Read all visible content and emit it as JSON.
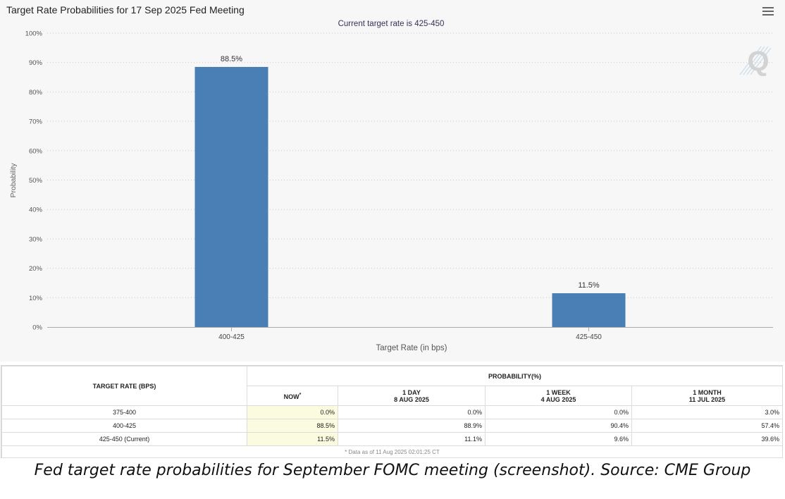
{
  "chart": {
    "title": "Target Rate Probabilities for 17 Sep 2025 Fed Meeting",
    "subtitle": "Current target rate is 425-450"
  },
  "chart_data": {
    "type": "bar",
    "title": "Target Rate Probabilities for 17 Sep 2025 Fed Meeting",
    "subtitle": "Current target rate is 425-450",
    "categories": [
      "400-425",
      "425-450"
    ],
    "values": [
      88.5,
      11.5
    ],
    "data_labels": [
      "88.5%",
      "11.5%"
    ],
    "xlabel": "Target Rate (in bps)",
    "ylabel": "Probability",
    "ylim": [
      0,
      100
    ],
    "yticks": [
      "0%",
      "10%",
      "20%",
      "30%",
      "40%",
      "50%",
      "60%",
      "70%",
      "80%",
      "90%",
      "100%"
    ],
    "grid": true,
    "bar_color": "#4a7fb5"
  },
  "table": {
    "rate_header": "TARGET RATE (BPS)",
    "prob_header": "PROBABILITY(%)",
    "now_header": "NOW",
    "now_marker": "*",
    "periods": [
      {
        "label": "1 DAY",
        "date": "8 AUG 2025"
      },
      {
        "label": "1 WEEK",
        "date": "4 AUG 2025"
      },
      {
        "label": "1 MONTH",
        "date": "11 JUL 2025"
      }
    ],
    "rows": [
      {
        "rate": "375-400",
        "now": "0.0%",
        "day": "0.0%",
        "week": "0.0%",
        "month": "3.0%"
      },
      {
        "rate": "400-425",
        "now": "88.5%",
        "day": "88.9%",
        "week": "90.4%",
        "month": "57.4%"
      },
      {
        "rate": "425-450 (Current)",
        "now": "11.5%",
        "day": "11.1%",
        "week": "9.6%",
        "month": "39.6%"
      }
    ],
    "footnote": "* Data as of 11 Aug 2025 02:01:25 CT"
  },
  "caption": "Fed target rate probabilities for September FOMC meeting (screenshot). Source: CME Group",
  "colors": {
    "bar": "#4a7fb5",
    "now_highlight": "#fbfbe0",
    "panel": "#f7f7f7"
  },
  "icons": {
    "menu": "hamburger-menu-icon",
    "watermark": "q-logo"
  }
}
